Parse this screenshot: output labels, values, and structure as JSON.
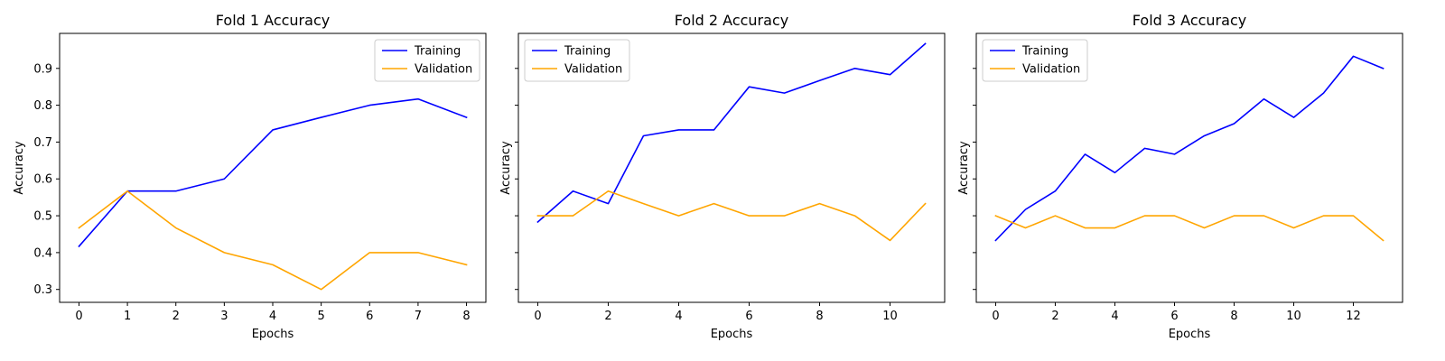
{
  "chart_data": [
    {
      "type": "line",
      "title": "Fold 1 Accuracy",
      "xlabel": "Epochs",
      "ylabel": "Accuracy",
      "xlim": [
        -0.4,
        8.4
      ],
      "ylim": [
        0.265,
        0.995
      ],
      "xticks": [
        0,
        1,
        2,
        3,
        4,
        5,
        6,
        7,
        8
      ],
      "yticks": [
        0.3,
        0.4,
        0.5,
        0.6,
        0.7,
        0.8,
        0.9
      ],
      "show_ytick_labels": true,
      "legend": "upper right",
      "x": [
        0,
        1,
        2,
        3,
        4,
        5,
        6,
        7,
        8
      ],
      "series": [
        {
          "name": "Training",
          "color": "#0000ff",
          "values": [
            0.417,
            0.567,
            0.567,
            0.6,
            0.733,
            0.767,
            0.8,
            0.817,
            0.767
          ]
        },
        {
          "name": "Validation",
          "color": "#ffa500",
          "values": [
            0.467,
            0.567,
            0.467,
            0.4,
            0.367,
            0.3,
            0.4,
            0.4,
            0.367
          ]
        }
      ]
    },
    {
      "type": "line",
      "title": "Fold 2 Accuracy",
      "xlabel": "Epochs",
      "ylabel": "Accuracy",
      "xlim": [
        -0.55,
        11.55
      ],
      "ylim": [
        0.265,
        0.995
      ],
      "xticks": [
        0,
        2,
        4,
        6,
        8,
        10
      ],
      "yticks": [
        0.3,
        0.4,
        0.5,
        0.6,
        0.7,
        0.8,
        0.9
      ],
      "show_ytick_labels": false,
      "legend": "upper left",
      "x": [
        0,
        1,
        2,
        3,
        4,
        5,
        6,
        7,
        8,
        9,
        10,
        11
      ],
      "series": [
        {
          "name": "Training",
          "color": "#0000ff",
          "values": [
            0.483,
            0.567,
            0.533,
            0.717,
            0.733,
            0.733,
            0.85,
            0.833,
            0.867,
            0.9,
            0.883,
            0.967
          ]
        },
        {
          "name": "Validation",
          "color": "#ffa500",
          "values": [
            0.5,
            0.5,
            0.567,
            0.533,
            0.5,
            0.533,
            0.5,
            0.5,
            0.533,
            0.5,
            0.433,
            0.533
          ]
        }
      ]
    },
    {
      "type": "line",
      "title": "Fold 3 Accuracy",
      "xlabel": "Epochs",
      "ylabel": "Accuracy",
      "xlim": [
        -0.65,
        13.65
      ],
      "ylim": [
        0.265,
        0.995
      ],
      "xticks": [
        0,
        2,
        4,
        6,
        8,
        10,
        12
      ],
      "yticks": [
        0.3,
        0.4,
        0.5,
        0.6,
        0.7,
        0.8,
        0.9
      ],
      "show_ytick_labels": false,
      "legend": "upper left",
      "x": [
        0,
        1,
        2,
        3,
        4,
        5,
        6,
        7,
        8,
        9,
        10,
        11,
        12,
        13
      ],
      "series": [
        {
          "name": "Training",
          "color": "#0000ff",
          "values": [
            0.433,
            0.517,
            0.567,
            0.667,
            0.617,
            0.683,
            0.667,
            0.717,
            0.75,
            0.817,
            0.767,
            0.833,
            0.933,
            0.9
          ]
        },
        {
          "name": "Validation",
          "color": "#ffa500",
          "values": [
            0.5,
            0.467,
            0.5,
            0.467,
            0.467,
            0.5,
            0.5,
            0.467,
            0.5,
            0.5,
            0.467,
            0.5,
            0.5,
            0.433
          ]
        }
      ]
    }
  ]
}
